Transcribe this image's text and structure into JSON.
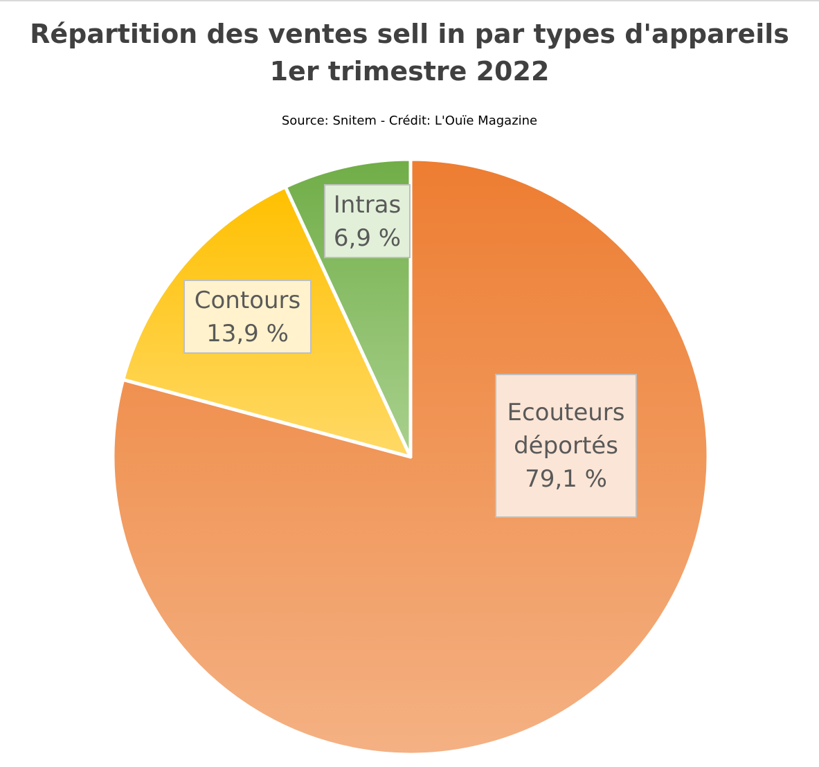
{
  "title_line1": "Répartition des ventes sell in par types d'appareils",
  "title_line2": "1er trimestre 2022",
  "subtitle": "Source: Snitem - Crédit: L'Ouïe Magazine",
  "chart_data": {
    "type": "pie",
    "title": "Répartition des ventes sell in par types d'appareils 1er trimestre 2022",
    "subtitle": "Source: Snitem - Crédit: L'Ouïe Magazine",
    "unit": "%",
    "start_angle": "12 o'clock",
    "direction": "clockwise",
    "slices": [
      {
        "name": "Ecouteurs déportés",
        "label_line1": "Ecouteurs",
        "label_line2": "déportés",
        "value": 79.1,
        "value_label": "79,1 %",
        "color_top": "#ed7d31",
        "color_bottom": "#f4b183",
        "label_bg": "#fbe5d6"
      },
      {
        "name": "Contours",
        "label_line1": "Contours",
        "value": 13.9,
        "value_label": "13,9 %",
        "color_top": "#ffc000",
        "color_bottom": "#ffd966",
        "label_bg": "#fff2cc"
      },
      {
        "name": "Intras",
        "label_line1": "Intras",
        "value": 6.9,
        "value_label": "6,9 %",
        "color_top": "#70ad47",
        "color_bottom": "#a9d18e",
        "label_bg": "#e2f0d9"
      }
    ]
  }
}
